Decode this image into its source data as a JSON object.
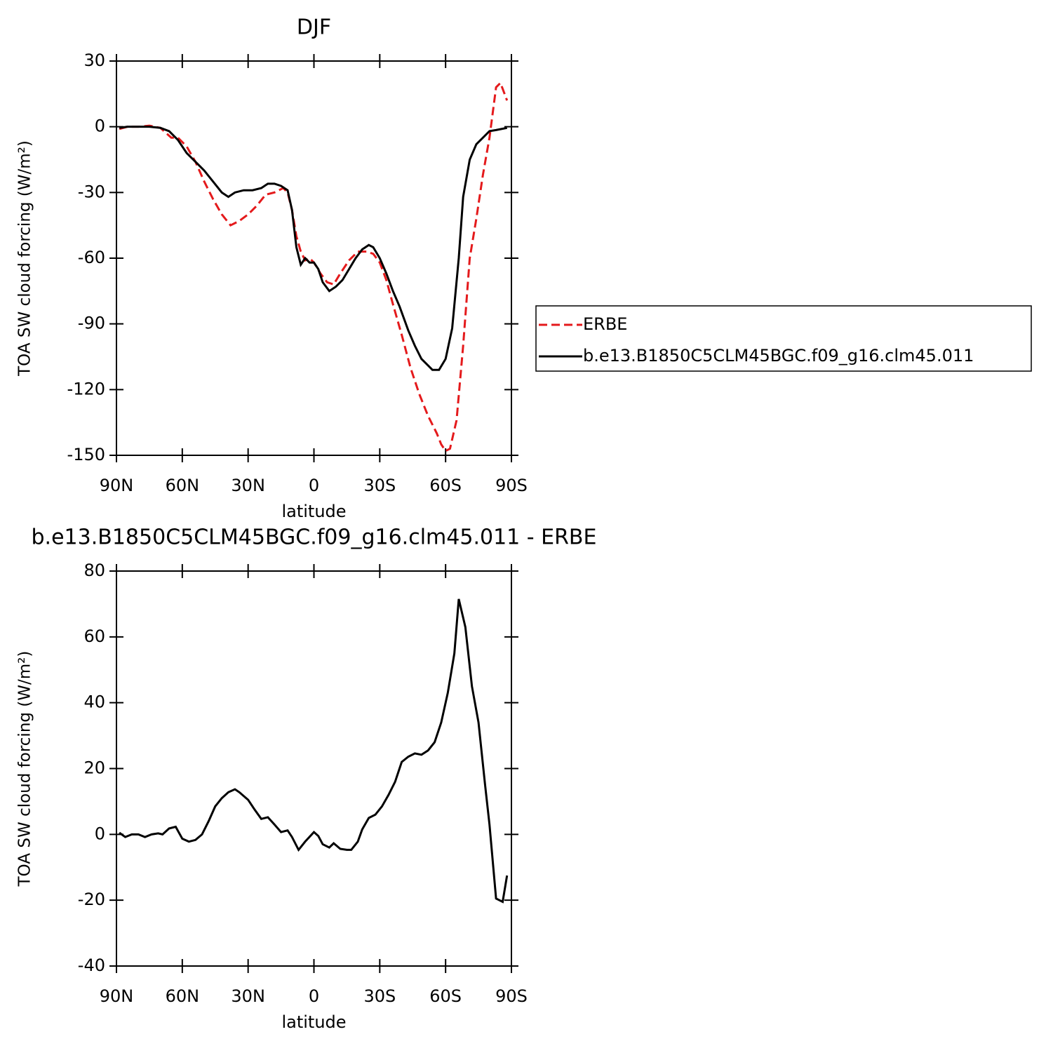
{
  "chart_data": [
    {
      "type": "line",
      "title": "DJF",
      "xlabel": "latitude",
      "ylabel": "TOA SW cloud forcing (W/m²)",
      "xlim": [
        90,
        -90
      ],
      "xticks": [
        {
          "value": 90,
          "label": "90N"
        },
        {
          "value": 60,
          "label": "60N"
        },
        {
          "value": 30,
          "label": "30N"
        },
        0,
        {
          "value": -30,
          "label": "30S"
        },
        {
          "value": -60,
          "label": "60S"
        },
        {
          "value": -90,
          "label": "90S"
        }
      ],
      "ylim": [
        -150,
        30
      ],
      "yticks": [
        -150,
        -120,
        -90,
        -60,
        -30,
        0,
        30
      ],
      "legend": "right",
      "series": [
        {
          "name": "ERBE",
          "color": "#e41a1c",
          "style": "dashed",
          "x": [
            88.7,
            85,
            80,
            75,
            70,
            65,
            62,
            58,
            54,
            50,
            46,
            42,
            38,
            34,
            30,
            26,
            22,
            18,
            14,
            12,
            10,
            8,
            6,
            4,
            2,
            0,
            -3,
            -6,
            -9,
            -12,
            -16,
            -20,
            -24,
            -27,
            -30,
            -33,
            -36,
            -40,
            -44,
            -48,
            -52,
            -56,
            -58,
            -60,
            -62,
            -65,
            -68,
            -71,
            -74,
            -77,
            -80,
            -83,
            -85,
            -88
          ],
          "values": [
            -1,
            0,
            0,
            0.5,
            -0.5,
            -5,
            -5,
            -9,
            -16,
            -25,
            -33,
            -40,
            -45,
            -43,
            -40,
            -36,
            -31,
            -30,
            -28,
            -30,
            -38,
            -50,
            -57,
            -61,
            -60,
            -62,
            -67,
            -71,
            -72,
            -67,
            -61,
            -57,
            -57,
            -58,
            -62,
            -70,
            -81,
            -95,
            -110,
            -122,
            -132,
            -140,
            -145,
            -148,
            -147,
            -134,
            -100,
            -60,
            -42,
            -22,
            -5,
            18,
            20,
            12
          ]
        },
        {
          "name": "b.e13.B1850C5CLM45BGC.f09_g16.clm45.011",
          "color": "#000000",
          "style": "solid",
          "x": [
            88.7,
            85,
            80,
            75,
            70,
            66,
            62,
            58,
            54,
            50,
            46,
            42,
            39,
            36,
            32,
            28,
            24,
            21,
            18,
            15,
            12,
            10,
            8,
            6,
            4,
            2,
            0,
            -2,
            -4,
            -7,
            -10,
            -13,
            -16,
            -19,
            -22,
            -25,
            -27,
            -30,
            -33,
            -36,
            -39,
            -43,
            -46,
            -49,
            -52,
            -54,
            -57,
            -60,
            -63,
            -66,
            -68,
            -71,
            -74,
            -77,
            -80,
            -83,
            -88
          ],
          "values": [
            -0.5,
            0,
            0,
            0,
            -0.5,
            -2,
            -6,
            -12,
            -16,
            -20,
            -25,
            -30,
            -32,
            -30,
            -29,
            -29,
            -28,
            -26,
            -26,
            -27,
            -29,
            -38,
            -55,
            -63,
            -60,
            -62,
            -62,
            -65,
            -71,
            -75,
            -73,
            -70,
            -65,
            -60,
            -56,
            -54,
            -55,
            -60,
            -67,
            -75,
            -82,
            -93,
            -100,
            -106,
            -109,
            -111,
            -111,
            -106,
            -92,
            -60,
            -32,
            -15,
            -8,
            -5,
            -2,
            -1.5,
            -0.5
          ]
        }
      ]
    },
    {
      "type": "line",
      "title": "b.e13.B1850C5CLM45BGC.f09_g16.clm45.011 - ERBE",
      "xlabel": "latitude",
      "ylabel": "TOA SW cloud forcing (W/m²)",
      "xlim": [
        90,
        -90
      ],
      "xticks": [
        {
          "value": 90,
          "label": "90N"
        },
        {
          "value": 60,
          "label": "60N"
        },
        {
          "value": 30,
          "label": "30N"
        },
        0,
        {
          "value": -30,
          "label": "30S"
        },
        {
          "value": -60,
          "label": "60S"
        },
        {
          "value": -90,
          "label": "90S"
        }
      ],
      "ylim": [
        -40,
        80
      ],
      "yticks": [
        -40,
        -20,
        0,
        20,
        40,
        60,
        80
      ],
      "series": [
        {
          "color": "#000000",
          "style": "solid",
          "x": [
            88.7,
            86,
            83,
            80,
            77,
            74,
            71,
            69,
            66,
            63,
            60,
            57,
            54,
            51,
            48,
            45,
            42,
            39,
            36,
            34,
            30,
            27,
            24,
            21,
            18,
            15,
            12,
            10,
            7,
            4,
            0,
            -2,
            -4,
            -7,
            -9,
            -12,
            -15,
            -17,
            -20,
            -22,
            -25,
            -28,
            -31,
            -34,
            -37,
            -40,
            -43,
            -46,
            -49,
            -52,
            -55,
            -58,
            -61,
            -64,
            -66,
            -69,
            -72,
            -75,
            -78,
            -80,
            -83,
            -86,
            -88
          ],
          "values": [
            0.5,
            -0.8,
            0,
            0,
            -0.8,
            0,
            0.3,
            0,
            1.8,
            2.3,
            -1.3,
            -2.2,
            -1.7,
            0,
            4,
            8.5,
            11,
            12.8,
            13.7,
            12.8,
            10.5,
            7.5,
            4.7,
            5.2,
            3,
            0.7,
            1.2,
            -0.8,
            -4.7,
            -2.2,
            0.7,
            -0.5,
            -3,
            -4,
            -2.7,
            -4.4,
            -4.7,
            -4.7,
            -2.2,
            1.5,
            5,
            6,
            8.5,
            12,
            16,
            22,
            23.6,
            24.6,
            24.2,
            25.5,
            28,
            34,
            43,
            55,
            71.5,
            63,
            45,
            34,
            15,
            3,
            -19.5,
            -20.5,
            -12.5
          ]
        }
      ]
    }
  ]
}
